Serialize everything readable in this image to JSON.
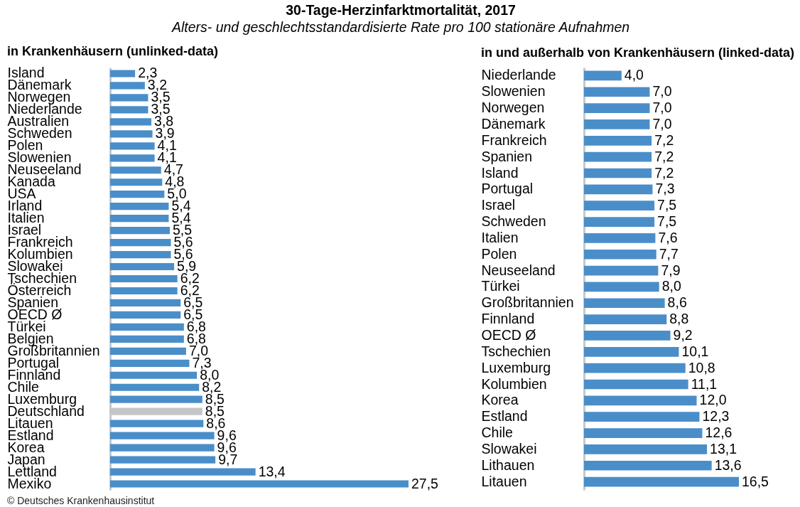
{
  "chart_data": [
    {
      "type": "other",
      "title": "30-Tage-Herzinfarktmortalität, 2017",
      "subtitle": "Alters- und geschlechtsstandardisierte Rate pro 100 stationäre Aufnahmen"
    },
    {
      "type": "bar",
      "orientation": "horizontal",
      "title": "in Krankenhäusern (unlinked-data)",
      "tick_labels": "y",
      "categories": [
        "Island",
        "Dänemark",
        "Norwegen",
        "Niederlande",
        "Australien",
        "Schweden",
        "Polen",
        "Slowenien",
        "Neuseeland",
        "Kanada",
        "USA",
        "Irland",
        "Italien",
        "Israel",
        "Frankreich",
        "Kolumbien",
        "Slowakei",
        "Tschechien",
        "Österreich",
        "Spanien",
        "OECD Ø",
        "Türkei",
        "Belgien",
        "Großbritannien",
        "Portugal",
        "Finnland",
        "Chile",
        "Luxemburg",
        "Deutschland",
        "Litauen",
        "Estland",
        "Korea",
        "Japan",
        "Lettland",
        "Mexiko"
      ],
      "values": [
        2.3,
        3.2,
        3.5,
        3.5,
        3.8,
        3.9,
        4.1,
        4.1,
        4.7,
        4.8,
        5.0,
        5.4,
        5.4,
        5.5,
        5.6,
        5.6,
        5.9,
        6.2,
        6.2,
        6.5,
        6.5,
        6.8,
        6.8,
        7.0,
        7.3,
        8.0,
        8.2,
        8.5,
        8.5,
        8.6,
        9.6,
        9.6,
        9.7,
        13.4,
        27.5
      ],
      "value_labels": [
        "2,3",
        "3,2",
        "3,5",
        "3,5",
        "3,8",
        "3,9",
        "4,1",
        "4,1",
        "4,7",
        "4,8",
        "5,0",
        "5,4",
        "5,4",
        "5,5",
        "5,6",
        "5,6",
        "5,9",
        "6,2",
        "6,2",
        "6,5",
        "6,5",
        "6,8",
        "6,8",
        "7,0",
        "7,3",
        "8,0",
        "8,2",
        "8,5",
        "8,5",
        "8,6",
        "9,6",
        "9,6",
        "9,7",
        "13,4",
        "27,5"
      ],
      "colors": [
        "#4a8ec9",
        "#4a8ec9",
        "#4a8ec9",
        "#4a8ec9",
        "#4a8ec9",
        "#4a8ec9",
        "#4a8ec9",
        "#4a8ec9",
        "#4a8ec9",
        "#4a8ec9",
        "#4a8ec9",
        "#4a8ec9",
        "#4a8ec9",
        "#4a8ec9",
        "#4a8ec9",
        "#4a8ec9",
        "#4a8ec9",
        "#4a8ec9",
        "#4a8ec9",
        "#4a8ec9",
        "#4a8ec9",
        "#4a8ec9",
        "#4a8ec9",
        "#4a8ec9",
        "#4a8ec9",
        "#4a8ec9",
        "#4a8ec9",
        "#4a8ec9",
        "#c4c5c7",
        "#4a8ec9",
        "#4a8ec9",
        "#4a8ec9",
        "#4a8ec9",
        "#4a8ec9",
        "#4a8ec9"
      ],
      "annotations": [
        "© Deutsches Krankenhausinstitut"
      ]
    },
    {
      "type": "bar",
      "orientation": "horizontal",
      "title": "in und außerhalb von Krankenhäusern (linked-data)",
      "tick_labels": "y",
      "categories": [
        "Niederlande",
        "Slowenien",
        "Norwegen",
        "Dänemark",
        "Frankreich",
        "Spanien",
        "Island",
        "Portugal",
        "Israel",
        "Schweden",
        "Italien",
        "Polen",
        "Neuseeland",
        "Türkei",
        "Großbritannien",
        "Finnland",
        "OECD Ø",
        "Tschechien",
        "Luxemburg",
        "Kolumbien",
        "Korea",
        "Estland",
        "Chile",
        "Slowakei",
        "Lithauen",
        "Litauen"
      ],
      "values": [
        4.0,
        7.0,
        7.0,
        7.0,
        7.2,
        7.2,
        7.2,
        7.3,
        7.5,
        7.5,
        7.6,
        7.7,
        7.9,
        8.0,
        8.6,
        8.8,
        9.2,
        10.1,
        10.8,
        11.1,
        12.0,
        12.3,
        12.6,
        13.1,
        13.6,
        16.5
      ],
      "value_labels": [
        "4,0",
        "7,0",
        "7,0",
        "7,0",
        "7,2",
        "7,2",
        "7,2",
        "7,3",
        "7,5",
        "7,5",
        "7,6",
        "7,7",
        "7,9",
        "8,0",
        "8,6",
        "8,8",
        "9,2",
        "10,1",
        "10,8",
        "11,1",
        "12,0",
        "12,3",
        "12,6",
        "13,1",
        "13,6",
        "16,5"
      ],
      "color": "#4a8ec9"
    }
  ]
}
